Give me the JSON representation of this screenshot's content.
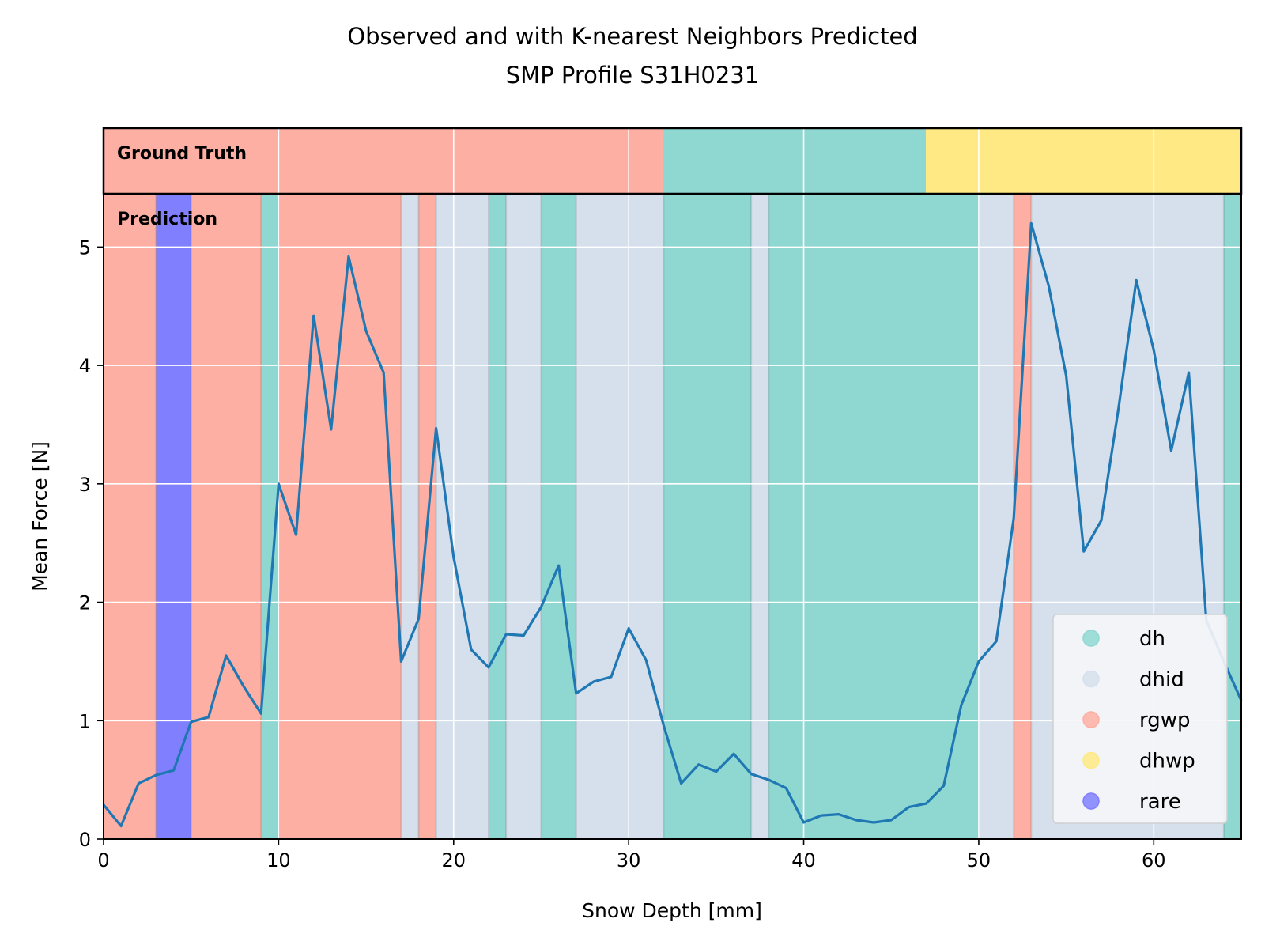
{
  "chart_data": {
    "type": "line",
    "title": "Observed and with K-nearest Neighbors Predicted",
    "subtitle": "SMP Profile S31H0231",
    "xlabel": "Snow Depth [mm]",
    "ylabel": "Mean Force [N]",
    "xlim": [
      0,
      65
    ],
    "ylim": [
      0,
      5.45
    ],
    "xticks": [
      0,
      10,
      20,
      30,
      40,
      50,
      60
    ],
    "yticks": [
      0,
      1,
      2,
      3,
      4,
      5
    ],
    "grid": true,
    "legend_position": "lower-right",
    "ground_truth_label": "Ground Truth",
    "prediction_label": "Prediction",
    "classes": [
      {
        "name": "dh",
        "color": "#8fd8d2"
      },
      {
        "name": "dhid",
        "color": "#d5e0ec"
      },
      {
        "name": "rgwp",
        "color": "#fdafa3"
      },
      {
        "name": "dhwp",
        "color": "#fee985"
      },
      {
        "name": "rare",
        "color": "#8080ff"
      }
    ],
    "ground_truth_segments": [
      {
        "start": 0,
        "end": 32,
        "class": "rgwp"
      },
      {
        "start": 32,
        "end": 47,
        "class": "dh"
      },
      {
        "start": 47,
        "end": 65,
        "class": "dhwp"
      }
    ],
    "prediction_segments": [
      {
        "start": 0,
        "end": 3,
        "class": "rgwp"
      },
      {
        "start": 3,
        "end": 5,
        "class": "rare"
      },
      {
        "start": 5,
        "end": 9,
        "class": "rgwp"
      },
      {
        "start": 9,
        "end": 10,
        "class": "dh"
      },
      {
        "start": 10,
        "end": 17,
        "class": "rgwp"
      },
      {
        "start": 17,
        "end": 18,
        "class": "dhid"
      },
      {
        "start": 18,
        "end": 19,
        "class": "rgwp"
      },
      {
        "start": 19,
        "end": 22,
        "class": "dhid"
      },
      {
        "start": 22,
        "end": 23,
        "class": "dh"
      },
      {
        "start": 23,
        "end": 25,
        "class": "dhid"
      },
      {
        "start": 25,
        "end": 27,
        "class": "dh"
      },
      {
        "start": 27,
        "end": 32,
        "class": "dhid"
      },
      {
        "start": 32,
        "end": 37,
        "class": "dh"
      },
      {
        "start": 37,
        "end": 38,
        "class": "dhid"
      },
      {
        "start": 38,
        "end": 50,
        "class": "dh"
      },
      {
        "start": 50,
        "end": 52,
        "class": "dhid"
      },
      {
        "start": 52,
        "end": 53,
        "class": "rgwp"
      },
      {
        "start": 53,
        "end": 64,
        "class": "dhid"
      },
      {
        "start": 64,
        "end": 65,
        "class": "dh"
      }
    ],
    "series": [
      {
        "color": "#1f77b4",
        "x": [
          0,
          1,
          2,
          3,
          4,
          5,
          6,
          7,
          8,
          9,
          10,
          11,
          12,
          13,
          14,
          15,
          16,
          17,
          18,
          19,
          20,
          21,
          22,
          23,
          24,
          25,
          26,
          27,
          28,
          29,
          30,
          31,
          32,
          33,
          34,
          35,
          36,
          37,
          38,
          39,
          40,
          41,
          42,
          43,
          44,
          45,
          46,
          47,
          48,
          49,
          50,
          51,
          52,
          53,
          54,
          55,
          56,
          57,
          58,
          59,
          60,
          61,
          62,
          63,
          64,
          65
        ],
        "values": [
          0.29,
          0.11,
          0.47,
          0.54,
          0.58,
          0.99,
          1.03,
          1.55,
          1.29,
          1.06,
          3.0,
          2.57,
          4.42,
          3.46,
          4.92,
          4.29,
          3.94,
          1.5,
          1.86,
          3.47,
          2.38,
          1.6,
          1.45,
          1.73,
          1.72,
          1.96,
          2.31,
          1.23,
          1.33,
          1.37,
          1.78,
          1.51,
          0.96,
          0.47,
          0.63,
          0.57,
          0.72,
          0.55,
          0.5,
          0.43,
          0.14,
          0.2,
          0.21,
          0.16,
          0.14,
          0.16,
          0.27,
          0.3,
          0.45,
          1.13,
          1.5,
          1.67,
          2.71,
          5.2,
          4.67,
          3.91,
          2.43,
          2.69,
          3.65,
          4.72,
          4.13,
          3.28,
          3.94,
          1.85,
          1.5,
          1.17
        ]
      }
    ]
  }
}
